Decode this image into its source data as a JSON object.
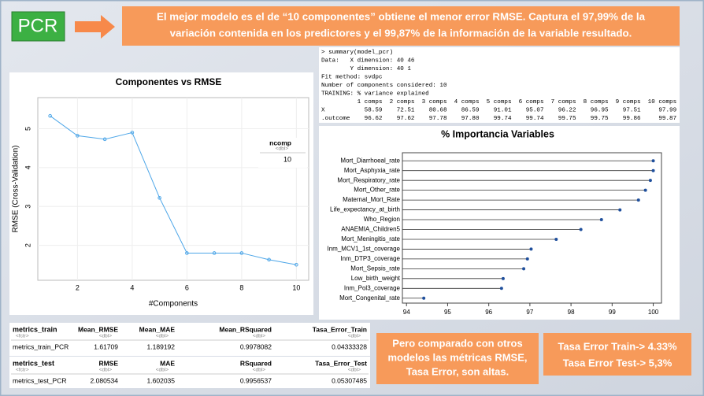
{
  "header": {
    "badge": "PCR",
    "banner": [
      "El mejor modelo es el de “10 componentes” obtiene el menor error RMSE. Captura el 97,99% de la",
      "variación contenida en los predictores y el 99,87% de la información de la variable resultado."
    ]
  },
  "summary": {
    "lines": [
      "> summary(model_pcr)",
      "Data:   X dimension: 40 46",
      "        Y dimension: 40 1",
      "Fit method: svdpc",
      "Number of components considered: 10",
      "TRAINING: % variance explained",
      "          1 comps  2 comps  3 comps  4 comps  5 comps  6 comps  7 comps  8 comps  9 comps  10 comps",
      "X           58.59    72.51    80.68    86.59    91.01    95.07    96.22    96.95    97.51     97.99",
      ".outcome    96.62    97.62    97.78    97.80    99.74    99.74    99.75    99.75    99.86     99.87"
    ]
  },
  "chart_data": [
    {
      "type": "line",
      "title": "Componentes vs RMSE",
      "x_label": "#Components",
      "y_label": "RMSE (Cross-Validation)",
      "x": [
        1,
        2,
        3,
        4,
        5,
        6,
        7,
        8,
        9,
        10
      ],
      "values": [
        5.33,
        4.82,
        4.73,
        4.9,
        3.22,
        1.8,
        1.8,
        1.8,
        1.63,
        1.5
      ],
      "color": "#4da6e8",
      "xlim": [
        0.55,
        10.45
      ],
      "ylim": [
        1.1,
        5.8
      ],
      "xticks": [
        2,
        4,
        6,
        8,
        10
      ],
      "yticks": [
        2,
        3,
        4,
        5
      ],
      "grid": true,
      "best_table": {
        "header": "ncomp",
        "type": "<dbl>",
        "value": 10
      }
    },
    {
      "type": "lollipop",
      "title": "% Importancia Variables",
      "categories": [
        "Mort_Diarrhoeal_rate",
        "Mort_Asphyxia_rate",
        "Mort_Respiratory_rate",
        "Mort_Other_rate",
        "Maternal_Mort_Rate",
        "Life_expectancy_at_birth",
        "Who_Region",
        "ANAEMIA_Children5",
        "Mort_Meningitis_rate",
        "Inm_MCV1_1st_coverage",
        "Inm_DTP3_coverage",
        "Mort_Sepsis_rate",
        "Low_birth_weight",
        "Inm_Pol3_coverage",
        "Mort_Congenital_rate"
      ],
      "values": [
        100,
        100,
        99.93,
        99.81,
        99.64,
        99.19,
        98.74,
        98.24,
        97.64,
        97.03,
        96.94,
        96.85,
        96.35,
        96.31,
        94.42
      ],
      "color": "#1f4f9c",
      "xlim": [
        93.9,
        100.2
      ],
      "xticks": [
        94,
        95,
        96,
        97,
        98,
        99,
        100
      ]
    }
  ],
  "tables": {
    "train": {
      "name": "metrics_train",
      "type": "<fctr>",
      "columns": [
        "Mean_RMSE",
        "Mean_MAE",
        "Mean_RSquared",
        "Tasa_Error_Train"
      ],
      "column_types": [
        "<dbl>",
        "<dbl>",
        "<dbl>",
        "<dbl>"
      ],
      "row": [
        "metrics_train_PCR",
        1.61709,
        1.189192,
        0.9978082,
        0.04333328
      ]
    },
    "test": {
      "name": "metrics_test",
      "type": "<fctr>",
      "columns": [
        "RMSE",
        "MAE",
        "RSquared",
        "Tasa_Error_Test"
      ],
      "column_types": [
        "<dbl>",
        "<dbl>",
        "<dbl>",
        "<dbl>"
      ],
      "row": [
        "metrics_test_PCR",
        2.080534,
        1.602035,
        0.9956537,
        0.05307485
      ]
    }
  },
  "notes": {
    "comparison": [
      "Pero comparado con otros",
      "modelos las métricas RMSE,",
      "Tasa Error,  son altas."
    ],
    "rates": [
      "Tasa Error  Train-> 4.33%",
      "Tasa Error  Test-> 5,3%"
    ]
  }
}
